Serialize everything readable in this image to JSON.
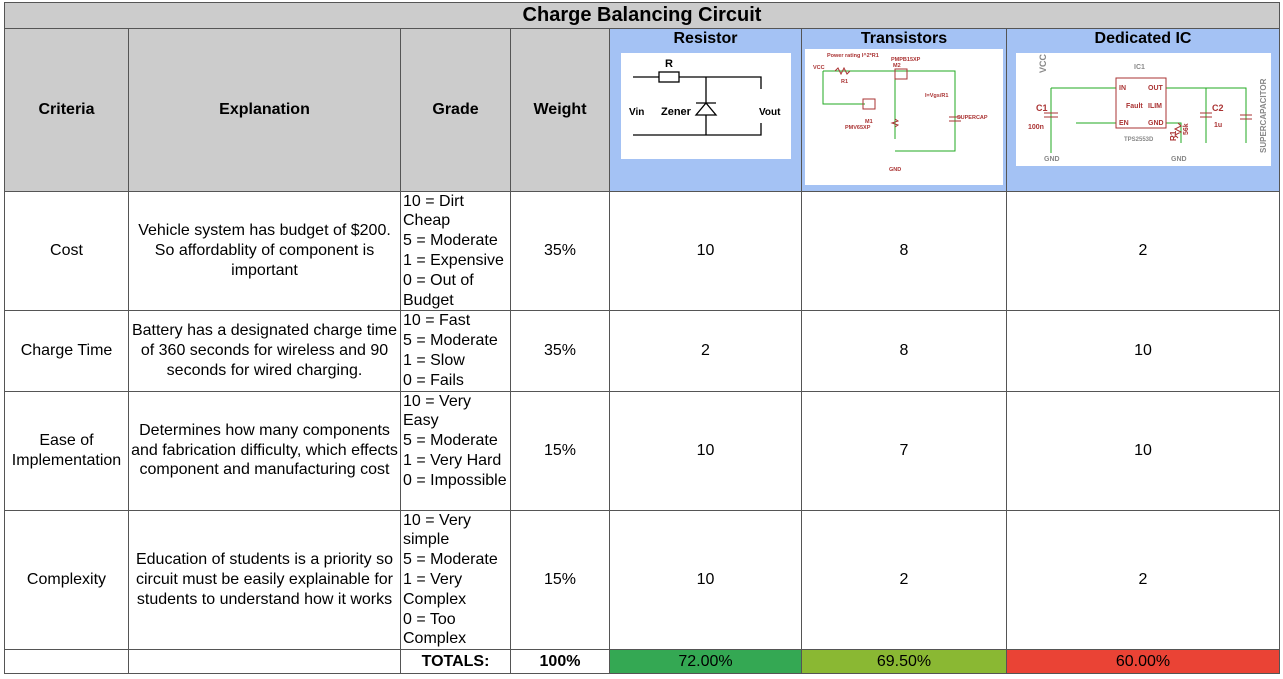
{
  "title": "Charge Balancing Circuit",
  "table": {
    "header": [
      "Criteria",
      "Explanation",
      "Grade",
      "Weight",
      "Resistor",
      "Transistors",
      "Dedicated IC"
    ],
    "rows": [
      [
        "Cost",
        "Vehicle system has budget of $200. So affordablity of component is important",
        [
          "10 = Dirt Cheap",
          "5 = Moderate",
          "1 = Expensive",
          "0 = Out of Budget"
        ],
        "35%",
        "10",
        "8",
        "2"
      ],
      [
        "Charge Time",
        "Battery has a designated charge time of 360 seconds for wireless and 90 seconds for wired charging.",
        [
          "10 = Fast",
          "5 = Moderate",
          "1 = Slow",
          "0 = Fails"
        ],
        "35%",
        "2",
        "8",
        "10"
      ],
      [
        "Ease of Implementation",
        "Determines how many components and fabrication difficulty, which effects component and manufacturing cost",
        [
          "10 = Very Easy",
          "5 = Moderate",
          "1 = Very Hard",
          "0 = Impossible"
        ],
        "15%",
        "10",
        "7",
        "10"
      ],
      [
        "Complexity",
        "Education of students is a priority so circuit must be easily explainable for students to understand how it works",
        [
          "10 = Very simple",
          "5 = Moderate",
          "1 = Very Complex",
          "0 = Too Complex"
        ],
        "15%",
        "10",
        "2",
        "2"
      ]
    ],
    "totals": {
      "label": "TOTALS:",
      "weight": "100%",
      "values": [
        "72.00%",
        "69.50%",
        "60.00%"
      ]
    }
  },
  "diagrams": {
    "resistor": [
      "R",
      "Zener",
      "Vin",
      "Vout"
    ],
    "transistors": [
      "Power rating I^2*R1",
      "PMPB15XP",
      "M2",
      "R1",
      "M1",
      "PMV65XP",
      "I=Vgs/R1",
      "SUPERCAP",
      "GND",
      "VCC"
    ],
    "ic": [
      "VCC",
      "IC1",
      "IN",
      "OUT",
      "Fault",
      "ILIM",
      "EN",
      "GND",
      "C1",
      "100n",
      "R1",
      "56k",
      "C2",
      "1u",
      "GND",
      "GND",
      "TPS2553D",
      "SUPERCAPACITOR"
    ]
  }
}
